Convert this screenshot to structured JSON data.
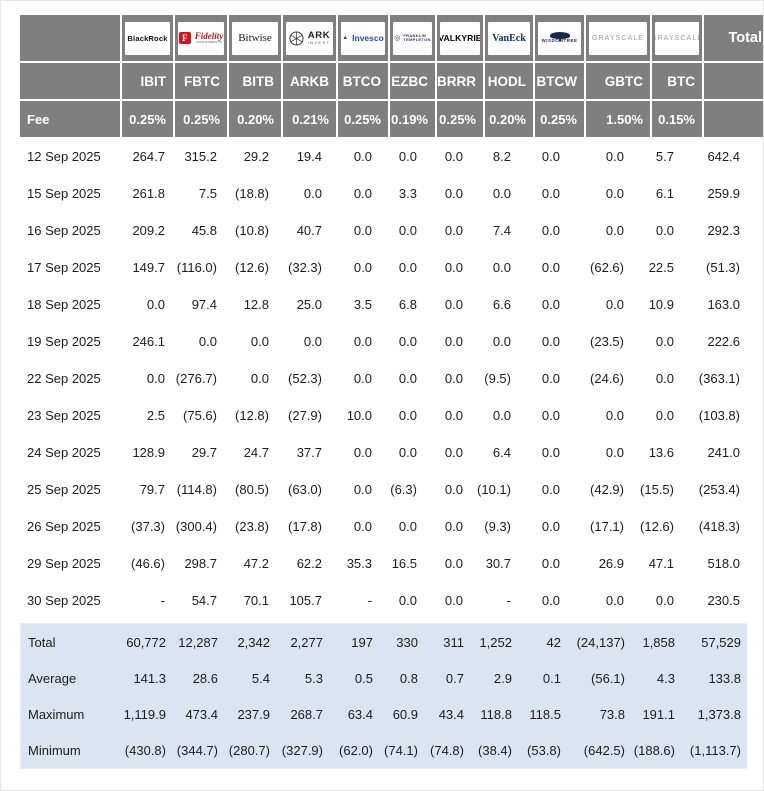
{
  "colors": {
    "header_gray": "#7f7f7f",
    "stripe_gray": "#f0f0f0",
    "highlight_green": "#90ee90",
    "summary_blue": "#dbe5f1",
    "negative_red": "#ff0000",
    "header_text": "#ffffff"
  },
  "header": {
    "fee_label": "Fee",
    "total_label": "Total",
    "issuers": [
      {
        "id": "blackrock",
        "label": "BlackRock"
      },
      {
        "id": "fidelity",
        "label": "Fidelity",
        "sub": "INVESTMENTS"
      },
      {
        "id": "bitwise",
        "label": "Bitwise"
      },
      {
        "id": "ark",
        "label": "ARK",
        "sub": "INVEST"
      },
      {
        "id": "invesco",
        "label": "Invesco",
        "glyph": "▲"
      },
      {
        "id": "franklin",
        "label": "FRANKLIN",
        "sub": "TEMPLETON",
        "glyph": "◎"
      },
      {
        "id": "valkyrie",
        "label": "VALKYRIE"
      },
      {
        "id": "vaneck",
        "label": "VanEck"
      },
      {
        "id": "wisdomtree",
        "label": "WISDOMTREE"
      },
      {
        "id": "grayscale",
        "label": "GRAYSCALE"
      },
      {
        "id": "grayscale",
        "label": "GRAYSCALE"
      }
    ]
  },
  "chart_data": {
    "type": "table",
    "tickers": [
      "IBIT",
      "FBTC",
      "BITB",
      "ARKB",
      "BTCO",
      "EZBC",
      "BRRR",
      "HODL",
      "BTCW",
      "GBTC",
      "BTC"
    ],
    "fees": [
      "0.25%",
      "0.25%",
      "0.20%",
      "0.21%",
      "0.25%",
      "0.19%",
      "0.25%",
      "0.20%",
      "0.25%",
      "1.50%",
      "0.15%"
    ],
    "rows": [
      {
        "date": "12 Sep 2025",
        "values": [
          "264.7",
          "315.2",
          "29.2",
          "19.4",
          "0.0",
          "0.0",
          "0.0",
          "8.2",
          "0.0",
          "0.0",
          "5.7"
        ],
        "total": "642.4"
      },
      {
        "date": "15 Sep 2025",
        "values": [
          "261.8",
          "7.5",
          "(18.8)",
          "0.0",
          "0.0",
          "3.3",
          "0.0",
          "0.0",
          "0.0",
          "0.0",
          "6.1"
        ],
        "total": "259.9"
      },
      {
        "date": "16 Sep 2025",
        "values": [
          "209.2",
          "45.8",
          "(10.8)",
          "40.7",
          "0.0",
          "0.0",
          "0.0",
          "7.4",
          "0.0",
          "0.0",
          "0.0"
        ],
        "total": "292.3"
      },
      {
        "date": "17 Sep 2025",
        "values": [
          "149.7",
          "(116.0)",
          "(12.6)",
          "(32.3)",
          "0.0",
          "0.0",
          "0.0",
          "0.0",
          "0.0",
          "(62.6)",
          "22.5"
        ],
        "total": "(51.3)"
      },
      {
        "date": "18 Sep 2025",
        "values": [
          "0.0",
          "97.4",
          "12.8",
          "25.0",
          "3.5",
          "6.8",
          "0.0",
          "6.6",
          "0.0",
          "0.0",
          "10.9"
        ],
        "total": "163.0"
      },
      {
        "date": "19 Sep 2025",
        "values": [
          "246.1",
          "0.0",
          "0.0",
          "0.0",
          "0.0",
          "0.0",
          "0.0",
          "0.0",
          "0.0",
          "(23.5)",
          "0.0"
        ],
        "total": "222.6"
      },
      {
        "date": "22 Sep 2025",
        "values": [
          "0.0",
          "(276.7)",
          "0.0",
          "(52.3)",
          "0.0",
          "0.0",
          "0.0",
          "(9.5)",
          "0.0",
          "(24.6)",
          "0.0"
        ],
        "total": "(363.1)"
      },
      {
        "date": "23 Sep 2025",
        "values": [
          "2.5",
          "(75.6)",
          "(12.8)",
          "(27.9)",
          "10.0",
          "0.0",
          "0.0",
          "0.0",
          "0.0",
          "0.0",
          "0.0"
        ],
        "total": "(103.8)"
      },
      {
        "date": "24 Sep 2025",
        "values": [
          "128.9",
          "29.7",
          "24.7",
          "37.7",
          "0.0",
          "0.0",
          "0.0",
          "6.4",
          "0.0",
          "0.0",
          "13.6"
        ],
        "total": "241.0"
      },
      {
        "date": "25 Sep 2025",
        "values": [
          "79.7",
          "(114.8)",
          "(80.5)",
          "(63.0)",
          "0.0",
          "(6.3)",
          "0.0",
          "(10.1)",
          "0.0",
          "(42.9)",
          "(15.5)"
        ],
        "total": "(253.4)"
      },
      {
        "date": "26 Sep 2025",
        "values": [
          "(37.3)",
          "(300.4)",
          "(23.8)",
          "(17.8)",
          "0.0",
          "0.0",
          "0.0",
          "(9.3)",
          "0.0",
          "(17.1)",
          "(12.6)"
        ],
        "total": "(418.3)"
      },
      {
        "date": "29 Sep 2025",
        "values": [
          "(46.6)",
          "298.7",
          "47.2",
          "62.2",
          "35.3",
          "16.5",
          "0.0",
          "30.7",
          "0.0",
          "26.9",
          "47.1"
        ],
        "total": "518.0"
      },
      {
        "date": "30 Sep 2025",
        "values": [
          "-",
          "54.7",
          "70.1",
          "105.7",
          "-",
          "0.0",
          "0.0",
          "-",
          "0.0",
          "0.0",
          "0.0"
        ],
        "total": "230.5",
        "highlight": true
      }
    ],
    "summary": [
      {
        "label": "Total",
        "values": [
          "60,772",
          "12,287",
          "2,342",
          "2,277",
          "197",
          "330",
          "311",
          "1,252",
          "42",
          "(24,137)",
          "1,858"
        ],
        "total": "57,529"
      },
      {
        "label": "Average",
        "values": [
          "141.3",
          "28.6",
          "5.4",
          "5.3",
          "0.5",
          "0.8",
          "0.7",
          "2.9",
          "0.1",
          "(56.1)",
          "4.3"
        ],
        "total": "133.8"
      },
      {
        "label": "Maximum",
        "values": [
          "1,119.9",
          "473.4",
          "237.9",
          "268.7",
          "63.4",
          "60.9",
          "43.4",
          "118.8",
          "118.5",
          "73.8",
          "191.1"
        ],
        "total": "1,373.8"
      },
      {
        "label": "Minimum",
        "values": [
          "(430.8)",
          "(344.7)",
          "(280.7)",
          "(327.9)",
          "(62.0)",
          "(74.1)",
          "(74.8)",
          "(38.4)",
          "(53.8)",
          "(642.5)",
          "(188.6)"
        ],
        "total": "(1,113.7)"
      }
    ]
  }
}
